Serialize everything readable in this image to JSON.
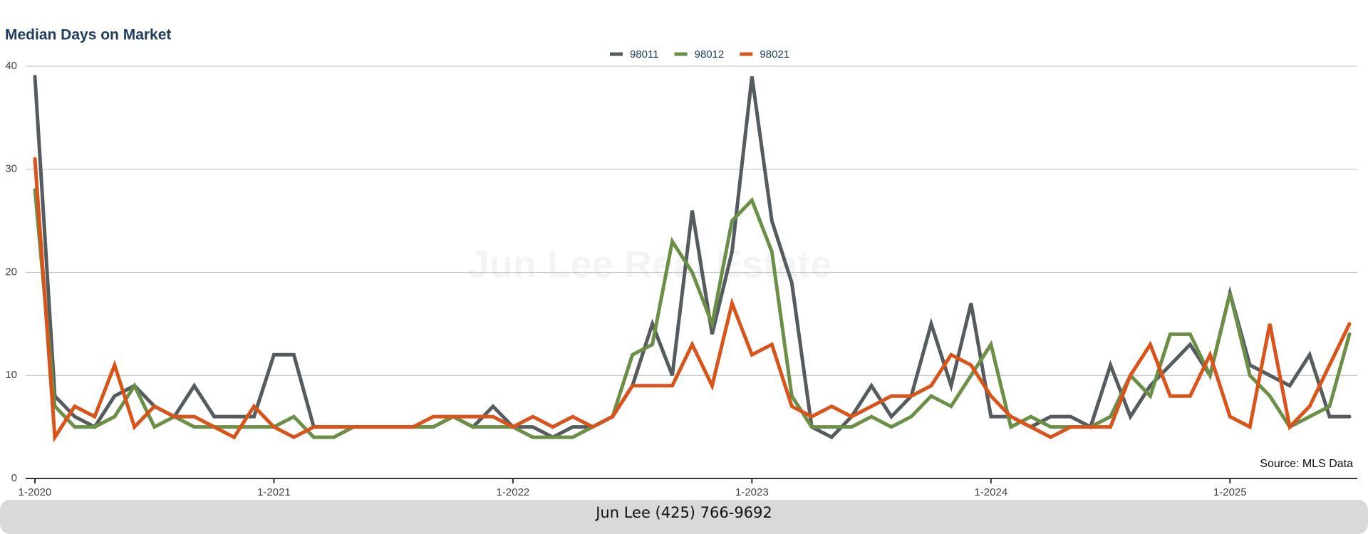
{
  "chart_data": {
    "type": "line",
    "title": "Median Days on Market",
    "watermark": "Jun Lee Real Estate",
    "source": "Source: MLS Data",
    "categories": [
      "1-2020",
      null,
      null,
      null,
      null,
      null,
      null,
      null,
      null,
      null,
      null,
      null,
      "1-2021",
      null,
      null,
      null,
      null,
      null,
      null,
      null,
      null,
      null,
      null,
      null,
      "1-2022",
      null,
      null,
      null,
      null,
      null,
      null,
      null,
      null,
      null,
      null,
      null,
      "1-2023",
      null,
      null,
      null,
      null,
      null,
      null,
      null,
      null,
      null,
      null,
      null,
      "1-2024",
      null,
      null,
      null,
      null,
      null,
      null,
      null,
      null,
      null,
      null,
      null,
      "1-2025",
      null,
      null,
      null,
      null,
      null,
      null
    ],
    "series": [
      {
        "name": "98011",
        "color": "#555c5f",
        "values": [
          39,
          8,
          6,
          5,
          8,
          9,
          7,
          6,
          9,
          6,
          6,
          6,
          12,
          12,
          5,
          5,
          5,
          5,
          5,
          5,
          5,
          6,
          5,
          7,
          5,
          5,
          4,
          5,
          5,
          6,
          9,
          15,
          10,
          26,
          14,
          22,
          39,
          25,
          19,
          5,
          4,
          6,
          9,
          6,
          8,
          15,
          9,
          17,
          6,
          6,
          5,
          6,
          6,
          5,
          11,
          6,
          9,
          11,
          13,
          10,
          18,
          11,
          10,
          9,
          12,
          6,
          6
        ]
      },
      {
        "name": "98012",
        "color": "#6b8f47",
        "values": [
          28,
          7,
          5,
          5,
          6,
          9,
          5,
          6,
          5,
          5,
          5,
          5,
          5,
          6,
          4,
          4,
          5,
          5,
          5,
          5,
          5,
          6,
          5,
          5,
          5,
          4,
          4,
          4,
          5,
          6,
          12,
          13,
          23,
          20,
          15,
          25,
          27,
          22,
          8,
          5,
          5,
          5,
          6,
          5,
          6,
          8,
          7,
          10,
          13,
          5,
          6,
          5,
          5,
          5,
          6,
          10,
          8,
          14,
          14,
          10,
          18,
          10,
          8,
          5,
          6,
          7,
          14
        ]
      },
      {
        "name": "98021",
        "color": "#d9541a",
        "values": [
          31,
          4,
          7,
          6,
          11,
          5,
          7,
          6,
          6,
          5,
          4,
          7,
          5,
          4,
          5,
          5,
          5,
          5,
          5,
          5,
          6,
          6,
          6,
          6,
          5,
          6,
          5,
          6,
          5,
          6,
          9,
          9,
          9,
          13,
          9,
          17,
          12,
          13,
          7,
          6,
          7,
          6,
          7,
          8,
          8,
          9,
          12,
          11,
          8,
          6,
          5,
          4,
          5,
          5,
          5,
          10,
          13,
          8,
          8,
          12,
          6,
          5,
          15,
          5,
          7,
          11,
          15
        ]
      }
    ],
    "ylim": [
      0,
      40
    ],
    "yticks": [
      0,
      10,
      20,
      30,
      40
    ],
    "grid": true
  },
  "footer": {
    "contact": "Jun Lee (425) 766-9692"
  }
}
